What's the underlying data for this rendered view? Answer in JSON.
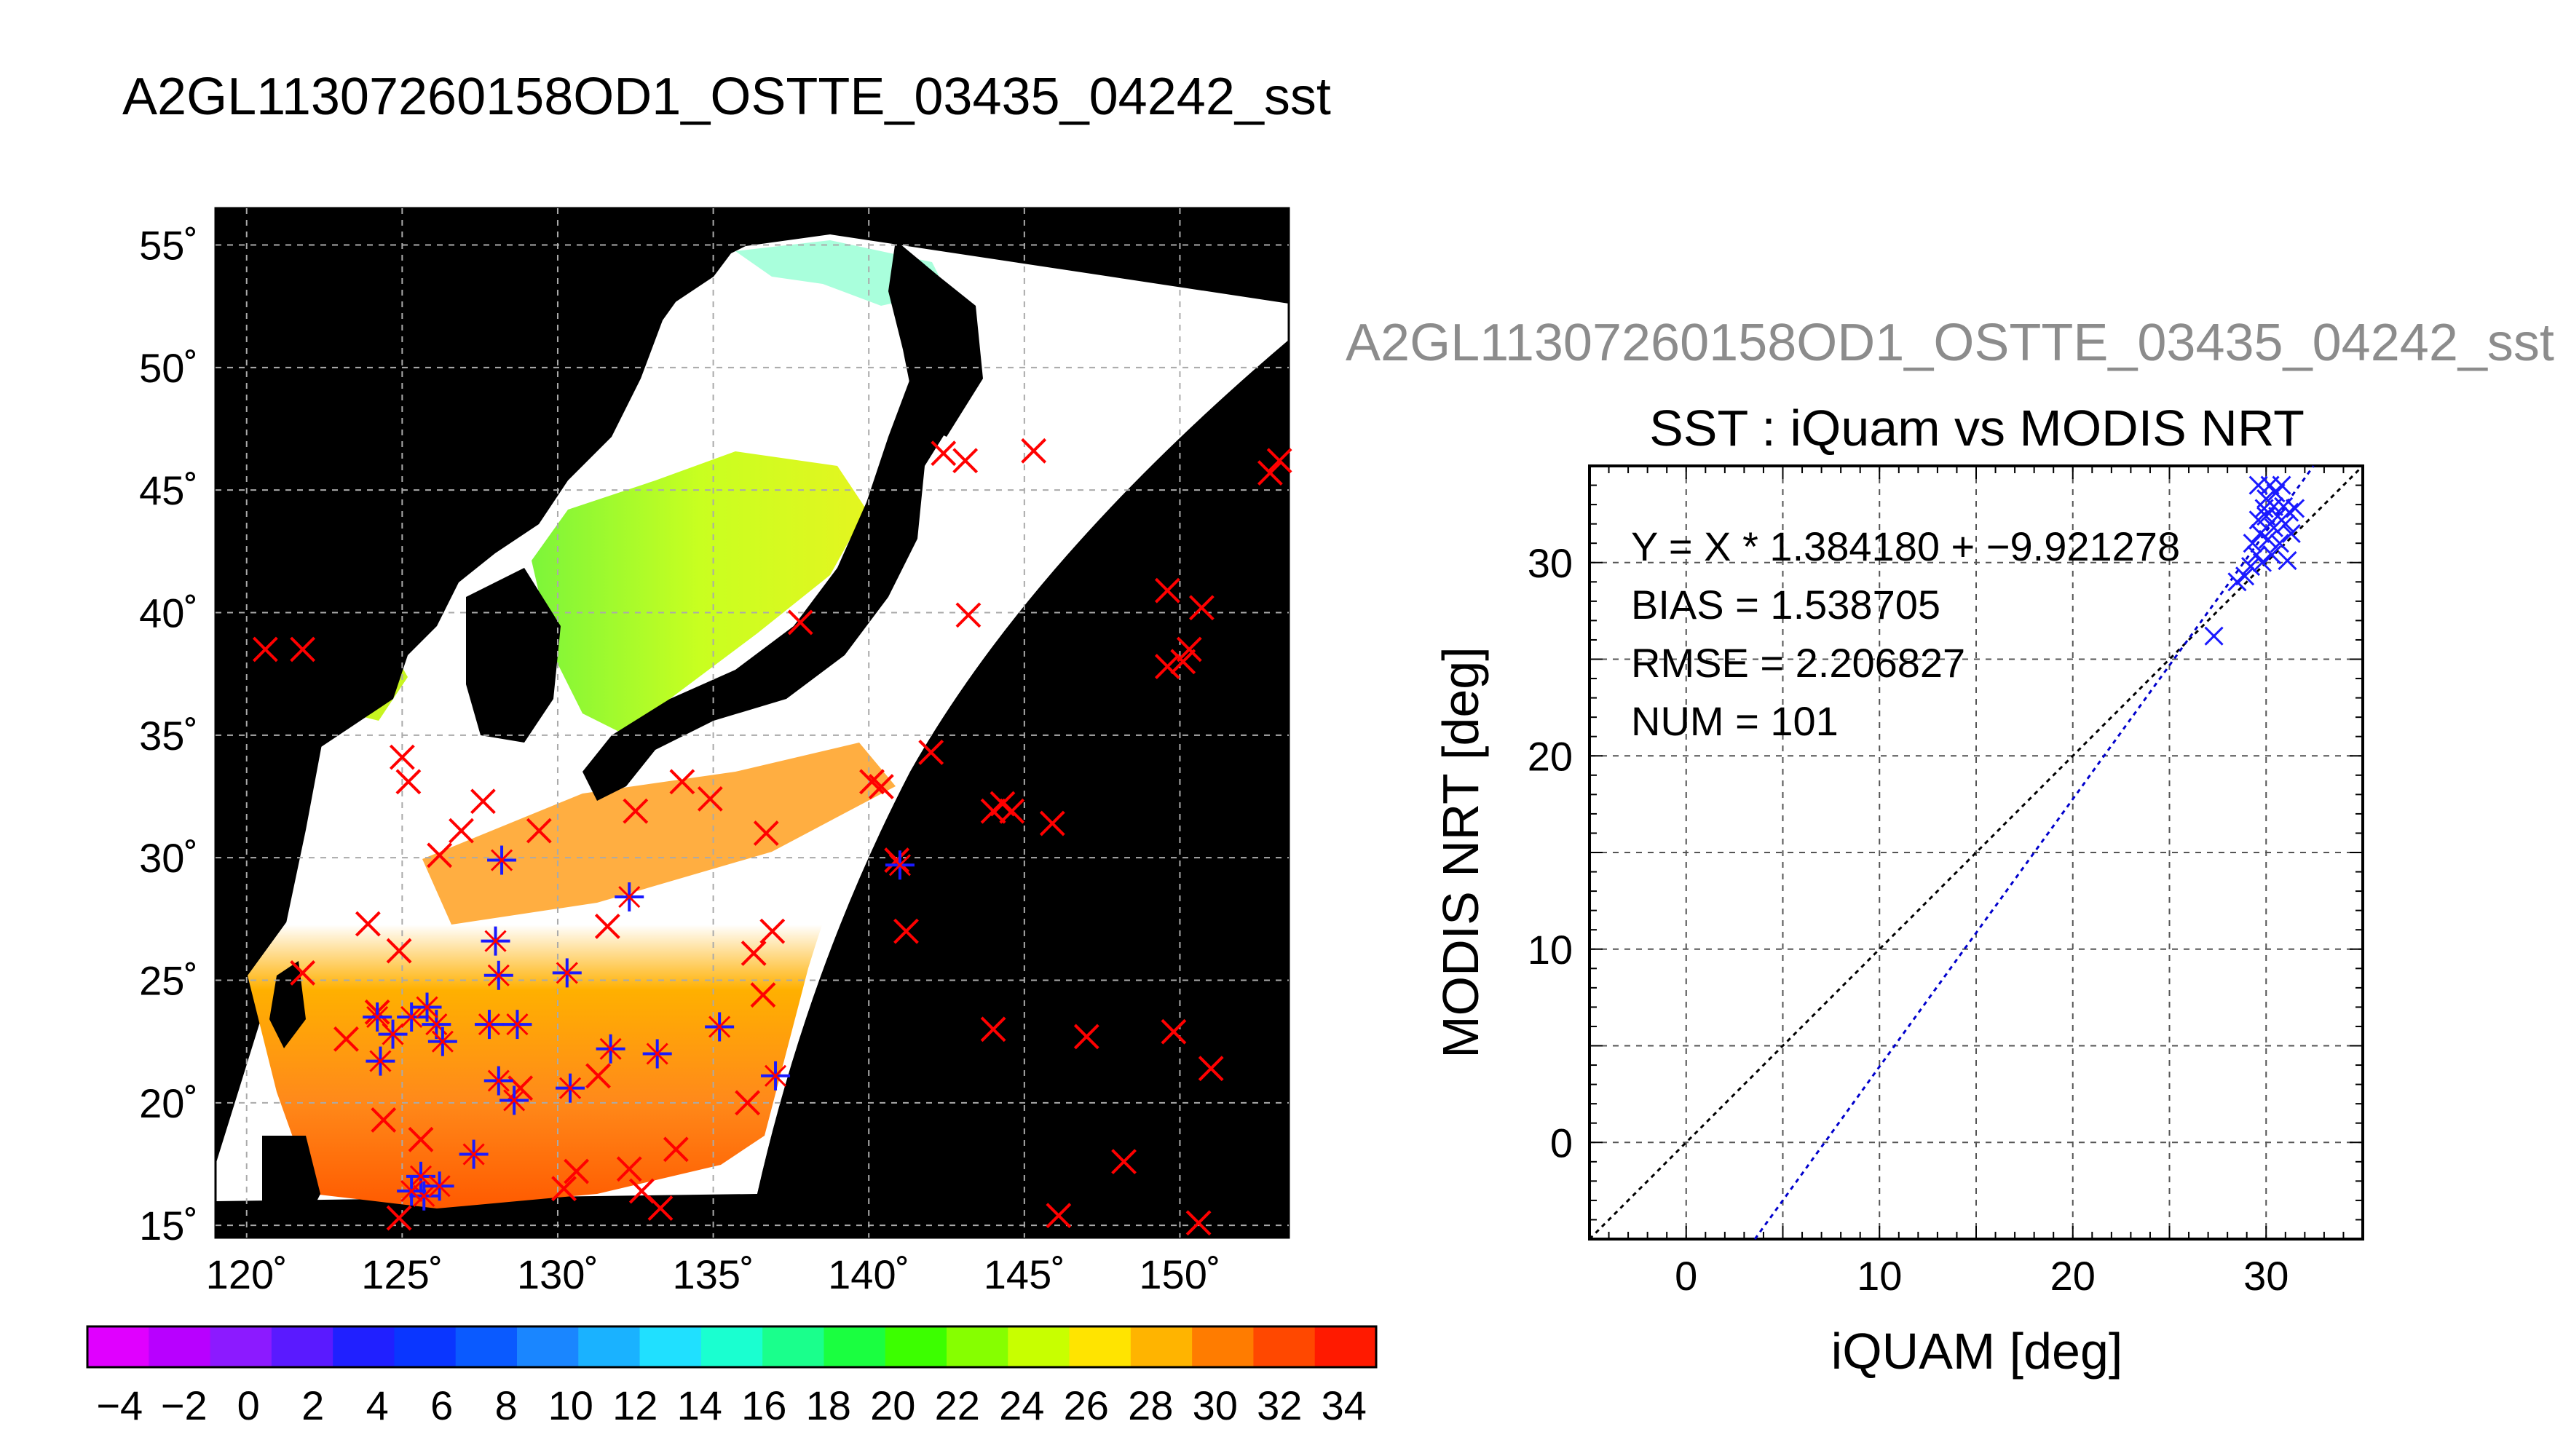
{
  "title": "A2GL11307260158OD1_OSTTE_03435_04242_sst",
  "colors": {
    "red_marker": "#ff0000",
    "blue_marker": "#1a1aff",
    "land": "#000000",
    "fit_line": "#0000cc",
    "identity_line": "#000000"
  },
  "chart_data": [
    {
      "type": "map",
      "title": "",
      "x_tick_labels": [
        "120˚",
        "125˚",
        "130˚",
        "135˚",
        "140˚",
        "145˚",
        "150˚"
      ],
      "y_tick_labels": [
        "55˚",
        "50˚",
        "45˚",
        "40˚",
        "35˚",
        "30˚",
        "25˚",
        "20˚",
        "15˚"
      ],
      "xlim": [
        119,
        153.5
      ],
      "ylim": [
        14.5,
        56.5
      ],
      "grid": true,
      "colorbar": {
        "ticks": [
          "−4",
          "−2",
          "0",
          "2",
          "4",
          "6",
          "8",
          "10",
          "12",
          "14",
          "16",
          "18",
          "20",
          "22",
          "24",
          "26",
          "28",
          "30",
          "32",
          "34"
        ],
        "range": [
          -5,
          35
        ],
        "colors": [
          "#e000ff",
          "#b800ff",
          "#8c1aff",
          "#5a1aff",
          "#2020ff",
          "#0a36ff",
          "#0a5aff",
          "#1a86ff",
          "#1ab2ff",
          "#20e0ff",
          "#1affd0",
          "#1aff8c",
          "#1aff40",
          "#3cff00",
          "#86ff00",
          "#c8ff00",
          "#ffe400",
          "#ffb400",
          "#ff7c00",
          "#ff4800",
          "#ff1a00"
        ]
      },
      "red_points": [
        [
          120.6,
          38.5
        ],
        [
          121.8,
          38.5
        ],
        [
          121.8,
          25.3
        ],
        [
          123.2,
          22.6
        ],
        [
          123.9,
          27.3
        ],
        [
          125.0,
          34.1
        ],
        [
          125.2,
          33.1
        ],
        [
          124.9,
          26.2
        ],
        [
          124.2,
          23.7
        ],
        [
          124.4,
          19.3
        ],
        [
          125.6,
          18.5
        ],
        [
          124.9,
          15.3
        ],
        [
          126.9,
          31.1
        ],
        [
          127.6,
          32.3
        ],
        [
          126.2,
          30.1
        ],
        [
          129.4,
          31.1
        ],
        [
          128.8,
          20.6
        ],
        [
          130.2,
          16.5
        ],
        [
          130.6,
          17.2
        ],
        [
          131.6,
          27.2
        ],
        [
          131.3,
          21.1
        ],
        [
          132.3,
          17.3
        ],
        [
          132.7,
          16.4
        ],
        [
          133.3,
          15.7
        ],
        [
          133.8,
          18.1
        ],
        [
          132.5,
          31.9
        ],
        [
          134.0,
          33.1
        ],
        [
          134.9,
          32.4
        ],
        [
          136.1,
          20.0
        ],
        [
          136.3,
          26.1
        ],
        [
          136.6,
          24.4
        ],
        [
          136.7,
          31.0
        ],
        [
          136.9,
          27.0
        ],
        [
          137.8,
          39.6
        ],
        [
          140.1,
          33.1
        ],
        [
          140.4,
          32.9
        ],
        [
          140.9,
          29.9
        ],
        [
          141.2,
          27.0
        ],
        [
          142.0,
          34.3
        ],
        [
          142.4,
          46.5
        ],
        [
          143.1,
          46.2
        ],
        [
          145.3,
          46.6
        ],
        [
          143.2,
          39.9
        ],
        [
          144.0,
          31.9
        ],
        [
          144.3,
          32.2
        ],
        [
          144.6,
          31.9
        ],
        [
          145.9,
          31.4
        ],
        [
          144.0,
          23.0
        ],
        [
          146.1,
          15.4
        ],
        [
          147.0,
          22.7
        ],
        [
          148.2,
          17.6
        ],
        [
          149.6,
          40.9
        ],
        [
          150.7,
          40.2
        ],
        [
          150.1,
          38.0
        ],
        [
          149.6,
          37.8
        ],
        [
          150.3,
          38.5
        ],
        [
          149.8,
          22.9
        ],
        [
          150.6,
          15.1
        ],
        [
          151.0,
          21.4
        ],
        [
          152.9,
          45.7
        ],
        [
          153.2,
          46.2
        ]
      ],
      "blue_points": [
        [
          124.2,
          23.5
        ],
        [
          125.3,
          23.5
        ],
        [
          126.1,
          23.2
        ],
        [
          124.3,
          21.7
        ],
        [
          124.7,
          22.8
        ],
        [
          125.8,
          23.9
        ],
        [
          126.3,
          22.5
        ],
        [
          125.6,
          17.0
        ],
        [
          125.7,
          16.2
        ],
        [
          125.3,
          16.4
        ],
        [
          126.2,
          16.6
        ],
        [
          127.3,
          17.9
        ],
        [
          128.0,
          26.6
        ],
        [
          128.1,
          25.2
        ],
        [
          127.8,
          23.2
        ],
        [
          128.7,
          23.2
        ],
        [
          128.1,
          20.9
        ],
        [
          128.6,
          20.1
        ],
        [
          128.2,
          29.9
        ],
        [
          130.3,
          25.3
        ],
        [
          130.4,
          20.6
        ],
        [
          131.7,
          22.2
        ],
        [
          132.3,
          28.4
        ],
        [
          133.2,
          22.0
        ],
        [
          135.2,
          23.1
        ],
        [
          137.0,
          21.1
        ],
        [
          141.0,
          29.7
        ]
      ]
    },
    {
      "type": "scatter",
      "title": "SST : iQuam vs MODIS NRT",
      "subtitle": "A2GL11307260158OD1_OSTTE_03435_04242_sst",
      "xlabel": "iQUAM [deg]",
      "ylabel": "MODIS NRT [deg]",
      "xlim": [
        -5,
        35
      ],
      "ylim": [
        -5,
        35
      ],
      "x_ticks": [
        0,
        10,
        20,
        30
      ],
      "y_ticks": [
        0,
        10,
        20,
        30
      ],
      "grid": true,
      "fit": {
        "slope": 1.38418,
        "intercept": -9.921278
      },
      "stats": [
        "Y = X * 1.384180 + −9.921278",
        "BIAS = 1.538705",
        "RMSE = 2.206827",
        "NUM = 101"
      ],
      "points": [
        [
          27.3,
          26.2
        ],
        [
          28.5,
          29.0
        ],
        [
          28.9,
          29.3
        ],
        [
          29.2,
          29.8
        ],
        [
          29.5,
          30.4
        ],
        [
          29.3,
          31.0
        ],
        [
          29.7,
          31.5
        ],
        [
          29.6,
          32.2
        ],
        [
          29.9,
          32.8
        ],
        [
          30.0,
          33.3
        ],
        [
          29.6,
          34.0
        ],
        [
          30.2,
          34.0
        ],
        [
          30.5,
          33.6
        ],
        [
          30.8,
          34.0
        ],
        [
          30.1,
          31.2
        ],
        [
          30.3,
          30.4
        ],
        [
          30.4,
          31.8
        ],
        [
          30.6,
          32.4
        ],
        [
          30.7,
          31.0
        ],
        [
          30.9,
          32.9
        ],
        [
          31.0,
          32.0
        ],
        [
          31.2,
          32.6
        ],
        [
          31.3,
          31.5
        ],
        [
          31.5,
          32.8
        ],
        [
          31.1,
          30.1
        ],
        [
          29.8,
          30.0
        ],
        [
          30.0,
          32.4
        ],
        [
          30.4,
          32.9
        ]
      ]
    }
  ]
}
